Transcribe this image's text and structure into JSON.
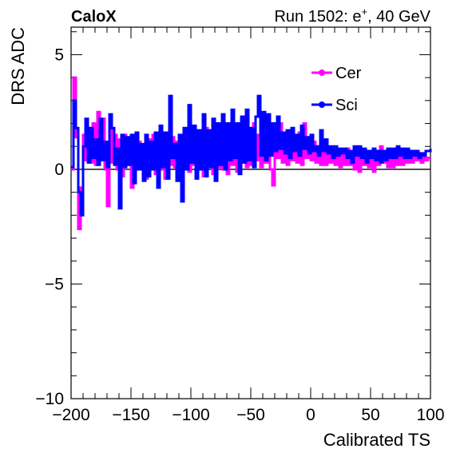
{
  "header": {
    "experiment": "CaloX",
    "run_prefix": "Run 1502: e",
    "particle_sup": "+",
    "run_suffix": ", 40 GeV"
  },
  "chart_data": {
    "type": "line",
    "xlabel": "Calibrated TS",
    "ylabel": "DRS ADC",
    "xlim": [
      -200,
      100
    ],
    "ylim": [
      -10,
      6.2
    ],
    "xticks": [
      -200,
      -150,
      -100,
      -50,
      0,
      50,
      100
    ],
    "xtick_labels": [
      "−200",
      "−150",
      "−100",
      "−50",
      "0",
      "50",
      "100"
    ],
    "yticks": [
      -10,
      -5,
      0,
      5
    ],
    "ytick_labels": [
      "−10",
      "−5",
      "0",
      "5"
    ],
    "grid": false,
    "legend_position": "top-right",
    "reference_line_y": 0,
    "series": [
      {
        "name": "Cer",
        "color": "#ff00ff",
        "points": [
          [
            -200,
            0.0
          ],
          [
            -198,
            4.0
          ],
          [
            -196,
            1.4
          ],
          [
            -194,
            -2.6
          ],
          [
            -192,
            -0.8
          ],
          [
            -190,
            1.5
          ],
          [
            -188,
            0.4
          ],
          [
            -186,
            1.8
          ],
          [
            -184,
            0.3
          ],
          [
            -182,
            2.0
          ],
          [
            -180,
            0.2
          ],
          [
            -178,
            2.5
          ],
          [
            -176,
            0.5
          ],
          [
            -174,
            2.2
          ],
          [
            -172,
            0.0
          ],
          [
            -170,
            -1.6
          ],
          [
            -168,
            1.8
          ],
          [
            -166,
            0.3
          ],
          [
            -164,
            1.5
          ],
          [
            -162,
            0.0
          ],
          [
            -160,
            1.3
          ],
          [
            -158,
            -0.3
          ],
          [
            -156,
            1.5
          ],
          [
            -154,
            0.2
          ],
          [
            -152,
            1.3
          ],
          [
            -150,
            -0.8
          ],
          [
            -148,
            1.0
          ],
          [
            -146,
            0.2
          ],
          [
            -144,
            1.2
          ],
          [
            -142,
            0.0
          ],
          [
            -140,
            0.9
          ],
          [
            -138,
            -0.4
          ],
          [
            -136,
            1.3
          ],
          [
            -134,
            0.2
          ],
          [
            -132,
            1.5
          ],
          [
            -130,
            -0.2
          ],
          [
            -128,
            1.6
          ],
          [
            -126,
            0.0
          ],
          [
            -124,
            1.3
          ],
          [
            -122,
            -0.4
          ],
          [
            -120,
            0.8
          ],
          [
            -118,
            0.2
          ],
          [
            -116,
            1.4
          ],
          [
            -114,
            0.1
          ],
          [
            -112,
            1.2
          ],
          [
            -110,
            -0.2
          ],
          [
            -108,
            1.0
          ],
          [
            -106,
            0.1
          ],
          [
            -104,
            1.5
          ],
          [
            -102,
            -0.1
          ],
          [
            -100,
            0.9
          ],
          [
            -98,
            0.2
          ],
          [
            -96,
            1.4
          ],
          [
            -94,
            0.0
          ],
          [
            -92,
            1.3
          ],
          [
            -90,
            -0.3
          ],
          [
            -88,
            1.8
          ],
          [
            -86,
            0.1
          ],
          [
            -84,
            1.4
          ],
          [
            -82,
            -0.2
          ],
          [
            -80,
            1.0
          ],
          [
            -78,
            0.1
          ],
          [
            -76,
            1.3
          ],
          [
            -74,
            0.0
          ],
          [
            -72,
            1.1
          ],
          [
            -70,
            -0.2
          ],
          [
            -68,
            1.6
          ],
          [
            -66,
            0.2
          ],
          [
            -64,
            1.3
          ],
          [
            -62,
            -0.1
          ],
          [
            -60,
            1.8
          ],
          [
            -58,
            0.3
          ],
          [
            -56,
            1.5
          ],
          [
            -54,
            0.1
          ],
          [
            -52,
            1.4
          ],
          [
            -50,
            0.2
          ],
          [
            -48,
            2.0
          ],
          [
            -46,
            0.4
          ],
          [
            -44,
            1.5
          ],
          [
            -42,
            0.1
          ],
          [
            -40,
            1.8
          ],
          [
            -38,
            0.3
          ],
          [
            -36,
            1.2
          ],
          [
            -34,
            0.0
          ],
          [
            -32,
            -0.7
          ],
          [
            -30,
            1.5
          ],
          [
            -28,
            0.5
          ],
          [
            -26,
            2.0
          ],
          [
            -24,
            0.3
          ],
          [
            -22,
            1.0
          ],
          [
            -20,
            0.2
          ],
          [
            -18,
            1.5
          ],
          [
            -16,
            0.4
          ],
          [
            -14,
            1.2
          ],
          [
            -12,
            0.3
          ],
          [
            -10,
            1.6
          ],
          [
            -8,
            0.2
          ],
          [
            -6,
            2.0
          ],
          [
            -4,
            0.5
          ],
          [
            -2,
            1.3
          ],
          [
            0,
            0.4
          ],
          [
            2,
            1.2
          ],
          [
            4,
            0.3
          ],
          [
            6,
            1.0
          ],
          [
            8,
            0.2
          ],
          [
            10,
            0.9
          ],
          [
            12,
            0.2
          ],
          [
            14,
            0.7
          ],
          [
            16,
            0.3
          ],
          [
            18,
            0.8
          ],
          [
            20,
            0.2
          ],
          [
            22,
            0.7
          ],
          [
            24,
            0.1
          ],
          [
            26,
            0.8
          ],
          [
            28,
            0.2
          ],
          [
            30,
            0.9
          ],
          [
            32,
            0.2
          ],
          [
            34,
            0.6
          ],
          [
            36,
            0.0
          ],
          [
            38,
            0.5
          ],
          [
            40,
            -0.1
          ],
          [
            42,
            0.6
          ],
          [
            44,
            0.2
          ],
          [
            46,
            0.8
          ],
          [
            48,
            0.1
          ],
          [
            50,
            0.6
          ],
          [
            52,
            -0.1
          ],
          [
            54,
            0.8
          ],
          [
            56,
            0.2
          ],
          [
            58,
            1.0
          ],
          [
            60,
            0.3
          ],
          [
            62,
            0.7
          ],
          [
            64,
            0.1
          ],
          [
            66,
            0.7
          ],
          [
            68,
            0.1
          ],
          [
            70,
            0.8
          ],
          [
            72,
            0.2
          ],
          [
            74,
            0.6
          ],
          [
            76,
            0.2
          ],
          [
            78,
            0.5
          ],
          [
            80,
            0.3
          ],
          [
            82,
            0.6
          ],
          [
            84,
            0.3
          ],
          [
            86,
            0.5
          ],
          [
            88,
            0.4
          ],
          [
            90,
            0.5
          ],
          [
            92,
            0.3
          ],
          [
            94,
            0.5
          ],
          [
            96,
            0.4
          ],
          [
            98,
            0.5
          ],
          [
            100,
            0.5
          ]
        ]
      },
      {
        "name": "Sci",
        "color": "#0000ff",
        "points": [
          [
            -200,
            0.1
          ],
          [
            -198,
            3.0
          ],
          [
            -196,
            1.8
          ],
          [
            -194,
            -1.0
          ],
          [
            -192,
            -2.0
          ],
          [
            -190,
            1.0
          ],
          [
            -188,
            2.2
          ],
          [
            -186,
            0.3
          ],
          [
            -184,
            1.8
          ],
          [
            -182,
            0.5
          ],
          [
            -180,
            1.3
          ],
          [
            -178,
            0.2
          ],
          [
            -176,
            2.2
          ],
          [
            -174,
            0.4
          ],
          [
            -172,
            1.2
          ],
          [
            -170,
            0.1
          ],
          [
            -168,
            2.4
          ],
          [
            -166,
            1.8
          ],
          [
            -164,
            0.2
          ],
          [
            -162,
            0.9
          ],
          [
            -160,
            -1.7
          ],
          [
            -158,
            1.5
          ],
          [
            -156,
            0.1
          ],
          [
            -154,
            1.4
          ],
          [
            -152,
            0.2
          ],
          [
            -150,
            1.5
          ],
          [
            -148,
            -0.6
          ],
          [
            -146,
            1.6
          ],
          [
            -144,
            0.0
          ],
          [
            -142,
            1.1
          ],
          [
            -140,
            -0.5
          ],
          [
            -138,
            1.5
          ],
          [
            -136,
            -0.3
          ],
          [
            -134,
            1.2
          ],
          [
            -132,
            0.0
          ],
          [
            -130,
            1.6
          ],
          [
            -128,
            -0.8
          ],
          [
            -126,
            1.9
          ],
          [
            -124,
            0.1
          ],
          [
            -122,
            1.6
          ],
          [
            -120,
            -0.4
          ],
          [
            -118,
            3.2
          ],
          [
            -116,
            0.5
          ],
          [
            -114,
            1.1
          ],
          [
            -112,
            -0.5
          ],
          [
            -110,
            1.5
          ],
          [
            -108,
            -1.4
          ],
          [
            -106,
            1.8
          ],
          [
            -104,
            0.0
          ],
          [
            -102,
            2.8
          ],
          [
            -100,
            0.3
          ],
          [
            -98,
            1.9
          ],
          [
            -96,
            -0.4
          ],
          [
            -94,
            1.7
          ],
          [
            -92,
            0.0
          ],
          [
            -90,
            2.4
          ],
          [
            -88,
            -0.3
          ],
          [
            -86,
            1.7
          ],
          [
            -84,
            0.1
          ],
          [
            -82,
            2.2
          ],
          [
            -80,
            -0.5
          ],
          [
            -78,
            2.0
          ],
          [
            -76,
            0.2
          ],
          [
            -74,
            2.4
          ],
          [
            -72,
            0.0
          ],
          [
            -70,
            2.0
          ],
          [
            -68,
            0.4
          ],
          [
            -66,
            2.6
          ],
          [
            -64,
            0.5
          ],
          [
            -62,
            2.0
          ],
          [
            -60,
            -0.2
          ],
          [
            -58,
            2.3
          ],
          [
            -56,
            0.3
          ],
          [
            -54,
            2.6
          ],
          [
            -52,
            0.4
          ],
          [
            -50,
            1.8
          ],
          [
            -48,
            0.1
          ],
          [
            -46,
            2.3
          ],
          [
            -44,
            3.2
          ],
          [
            -42,
            0.6
          ],
          [
            -40,
            2.5
          ],
          [
            -38,
            0.4
          ],
          [
            -36,
            2.4
          ],
          [
            -34,
            0.6
          ],
          [
            -32,
            2.0
          ],
          [
            -30,
            0.8
          ],
          [
            -28,
            2.3
          ],
          [
            -26,
            0.9
          ],
          [
            -24,
            1.6
          ],
          [
            -22,
            0.7
          ],
          [
            -20,
            1.7
          ],
          [
            -18,
            0.5
          ],
          [
            -16,
            1.8
          ],
          [
            -14,
            0.8
          ],
          [
            -12,
            1.5
          ],
          [
            -10,
            0.6
          ],
          [
            -8,
            1.9
          ],
          [
            -6,
            0.9
          ],
          [
            -4,
            1.4
          ],
          [
            -2,
            0.7
          ],
          [
            0,
            1.5
          ],
          [
            2,
            0.8
          ],
          [
            4,
            1.0
          ],
          [
            6,
            0.6
          ],
          [
            8,
            1.7
          ],
          [
            10,
            0.8
          ],
          [
            12,
            1.3
          ],
          [
            14,
            0.7
          ],
          [
            16,
            1.0
          ],
          [
            18,
            0.5
          ],
          [
            20,
            1.0
          ],
          [
            22,
            0.6
          ],
          [
            24,
            0.9
          ],
          [
            26,
            0.7
          ],
          [
            28,
            0.9
          ],
          [
            30,
            0.5
          ],
          [
            32,
            0.8
          ],
          [
            34,
            0.3
          ],
          [
            36,
            1.0
          ],
          [
            38,
            0.6
          ],
          [
            40,
            1.0
          ],
          [
            42,
            0.5
          ],
          [
            44,
            0.9
          ],
          [
            46,
            0.3
          ],
          [
            48,
            0.8
          ],
          [
            50,
            0.5
          ],
          [
            52,
            0.9
          ],
          [
            54,
            0.4
          ],
          [
            56,
            0.8
          ],
          [
            58,
            0.3
          ],
          [
            60,
            0.8
          ],
          [
            62,
            0.4
          ],
          [
            64,
            0.9
          ],
          [
            66,
            0.5
          ],
          [
            68,
            0.9
          ],
          [
            70,
            0.5
          ],
          [
            72,
            1.0
          ],
          [
            74,
            0.6
          ],
          [
            76,
            0.9
          ],
          [
            78,
            0.5
          ],
          [
            80,
            0.9
          ],
          [
            82,
            0.5
          ],
          [
            84,
            0.8
          ],
          [
            86,
            0.6
          ],
          [
            88,
            0.8
          ],
          [
            90,
            0.5
          ],
          [
            92,
            0.7
          ],
          [
            94,
            0.6
          ],
          [
            96,
            0.8
          ],
          [
            98,
            0.8
          ],
          [
            100,
            0.9
          ]
        ]
      }
    ]
  }
}
